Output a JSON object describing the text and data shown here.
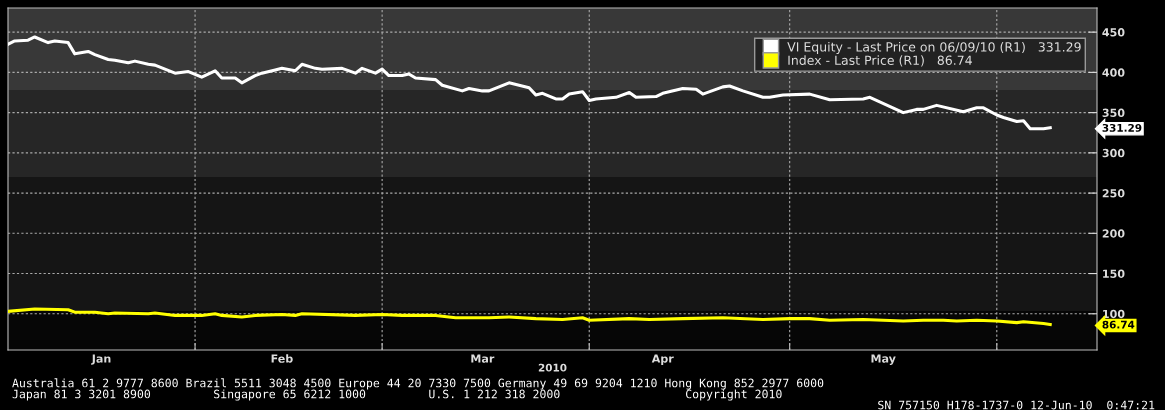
{
  "chart_data": {
    "type": "line",
    "xlabel": "2010",
    "series": [
      {
        "name": "VI Equity - Last Price on 06/09/10 (R1)   331.29",
        "color": "#ffffff",
        "x": [
          "2010-01-04",
          "2010-01-05",
          "2010-01-07",
          "2010-01-08",
          "2010-01-10",
          "2010-01-11",
          "2010-01-13",
          "2010-01-14",
          "2010-01-16",
          "2010-01-17",
          "2010-01-19",
          "2010-01-20",
          "2010-01-22",
          "2010-01-23",
          "2010-01-25",
          "2010-01-26",
          "2010-01-29",
          "2010-01-31",
          "2010-02-02",
          "2010-02-04",
          "2010-02-05",
          "2010-02-07",
          "2010-02-08",
          "2010-02-10",
          "2010-02-11",
          "2010-02-13",
          "2010-02-14",
          "2010-02-16",
          "2010-02-17",
          "2010-02-19",
          "2010-02-20",
          "2010-02-23",
          "2010-02-25",
          "2010-02-26",
          "2010-02-28",
          "2010-03-01",
          "2010-03-02",
          "2010-03-04",
          "2010-03-05",
          "2010-03-06",
          "2010-03-09",
          "2010-03-10",
          "2010-03-13",
          "2010-03-14",
          "2010-03-16",
          "2010-03-17",
          "2010-03-20",
          "2010-03-23",
          "2010-03-24",
          "2010-03-25",
          "2010-03-27",
          "2010-03-28",
          "2010-03-29",
          "2010-03-31",
          "2010-04-01",
          "2010-04-02",
          "2010-04-05",
          "2010-04-07",
          "2010-04-08",
          "2010-04-11",
          "2010-04-12",
          "2010-04-15",
          "2010-04-17",
          "2010-04-18",
          "2010-04-21",
          "2010-04-22",
          "2010-04-24",
          "2010-04-27",
          "2010-04-28",
          "2010-04-30",
          "2010-05-04",
          "2010-05-07",
          "2010-05-12",
          "2010-05-13",
          "2010-05-18",
          "2010-05-20",
          "2010-05-21",
          "2010-05-23",
          "2010-05-27",
          "2010-05-29",
          "2010-05-30",
          "2010-06-01",
          "2010-06-02",
          "2010-06-04",
          "2010-06-05",
          "2010-06-06",
          "2010-06-08",
          "2010-06-09"
        ],
        "values": [
          435,
          439,
          440,
          444,
          437,
          439,
          437,
          423,
          426,
          422,
          416,
          415,
          412,
          414,
          410,
          409,
          399,
          401,
          394,
          402,
          393,
          393,
          387,
          396,
          399,
          403,
          405,
          402,
          410,
          405,
          404,
          405,
          399,
          405,
          399,
          404,
          396,
          396,
          398,
          393,
          391,
          384,
          377,
          380,
          377,
          377,
          387,
          381,
          372,
          374,
          367,
          367,
          373,
          376,
          365,
          367,
          369,
          375,
          369,
          370,
          374,
          380,
          379,
          373,
          382,
          383,
          377,
          369,
          369,
          372,
          373,
          366,
          367,
          369,
          350,
          354,
          354,
          359,
          351,
          356,
          356,
          347,
          344,
          339,
          340,
          330,
          330,
          331.29
        ]
      },
      {
        "name": "Index - Last Price (R1)   86.74",
        "color": "#ffff00",
        "x": [
          "2010-01-04",
          "2010-01-08",
          "2010-01-13",
          "2010-01-14",
          "2010-01-17",
          "2010-01-19",
          "2010-01-20",
          "2010-01-25",
          "2010-01-26",
          "2010-01-29",
          "2010-02-02",
          "2010-02-04",
          "2010-02-05",
          "2010-02-08",
          "2010-02-10",
          "2010-02-14",
          "2010-02-16",
          "2010-02-17",
          "2010-02-25",
          "2010-03-01",
          "2010-03-04",
          "2010-03-09",
          "2010-03-12",
          "2010-03-17",
          "2010-03-20",
          "2010-03-24",
          "2010-03-28",
          "2010-03-31",
          "2010-04-01",
          "2010-04-07",
          "2010-04-10",
          "2010-04-15",
          "2010-04-21",
          "2010-04-27",
          "2010-05-01",
          "2010-05-04",
          "2010-05-07",
          "2010-05-12",
          "2010-05-18",
          "2010-05-21",
          "2010-05-24",
          "2010-05-26",
          "2010-05-29",
          "2010-06-01",
          "2010-06-04",
          "2010-06-05",
          "2010-06-08",
          "2010-06-09"
        ],
        "values": [
          103,
          106,
          105,
          102,
          102,
          100,
          101,
          100,
          101,
          98,
          98,
          100,
          98,
          96,
          98,
          99,
          98,
          100,
          98,
          99,
          98,
          98,
          95,
          95,
          96,
          94,
          93,
          95,
          92,
          94,
          93,
          94,
          95,
          93,
          94,
          94,
          92,
          93,
          91,
          92,
          92,
          91,
          92,
          91,
          89,
          90,
          88,
          86.74
        ]
      }
    ],
    "xlim": [
      "2010-01-04",
      "2010-06-16"
    ],
    "xticks": [
      {
        "value": "2010-02-01",
        "label": null
      },
      {
        "value": "2010-03-01",
        "label": null
      },
      {
        "value": "2010-04-01",
        "label": null
      },
      {
        "value": "2010-05-01",
        "label": null
      },
      {
        "value": "2010-06-01",
        "label": null
      },
      {
        "value": "2010-01-18",
        "label": "Jan"
      },
      {
        "value": "2010-02-14",
        "label": "Feb"
      },
      {
        "value": "2010-03-16",
        "label": "Mar"
      },
      {
        "value": "2010-04-12",
        "label": "Apr"
      },
      {
        "value": "2010-05-15",
        "label": "May"
      }
    ],
    "ylim": [
      55,
      480
    ],
    "yticks": [
      100,
      150,
      200,
      250,
      300,
      350,
      400,
      450,
      {
        "value": 331.29,
        "label": "331.29"
      },
      {
        "value": 86.74,
        "label": "86.74"
      }
    ],
    "bands": [
      {
        "axis": "y",
        "from": 378,
        "to": 480,
        "color": "#383838"
      },
      {
        "axis": "y",
        "from": 270,
        "to": 378,
        "color": "#262626"
      },
      {
        "axis": "y",
        "from": 103,
        "to": 270,
        "color": "#151515"
      },
      {
        "axis": "y",
        "from": 55,
        "to": 103,
        "color": "#060606"
      }
    ],
    "grid": true,
    "line_style": "solid",
    "legend": "top right",
    "annotations": [
      "Australia 61 2 9777 8600 Brazil 5511 3048 4500 Europe 44 20 7330 7500 Germany 49 69 9204 1210 Hong Kong 852 2977 6000",
      "Japan 81 3 3201 8900         Singapore 65 6212 1000         U.S. 1 212 318 2000                  Copyright 2010",
      "SN 757150 H178-1737-0 12-Jun-10  0:47:21"
    ]
  }
}
